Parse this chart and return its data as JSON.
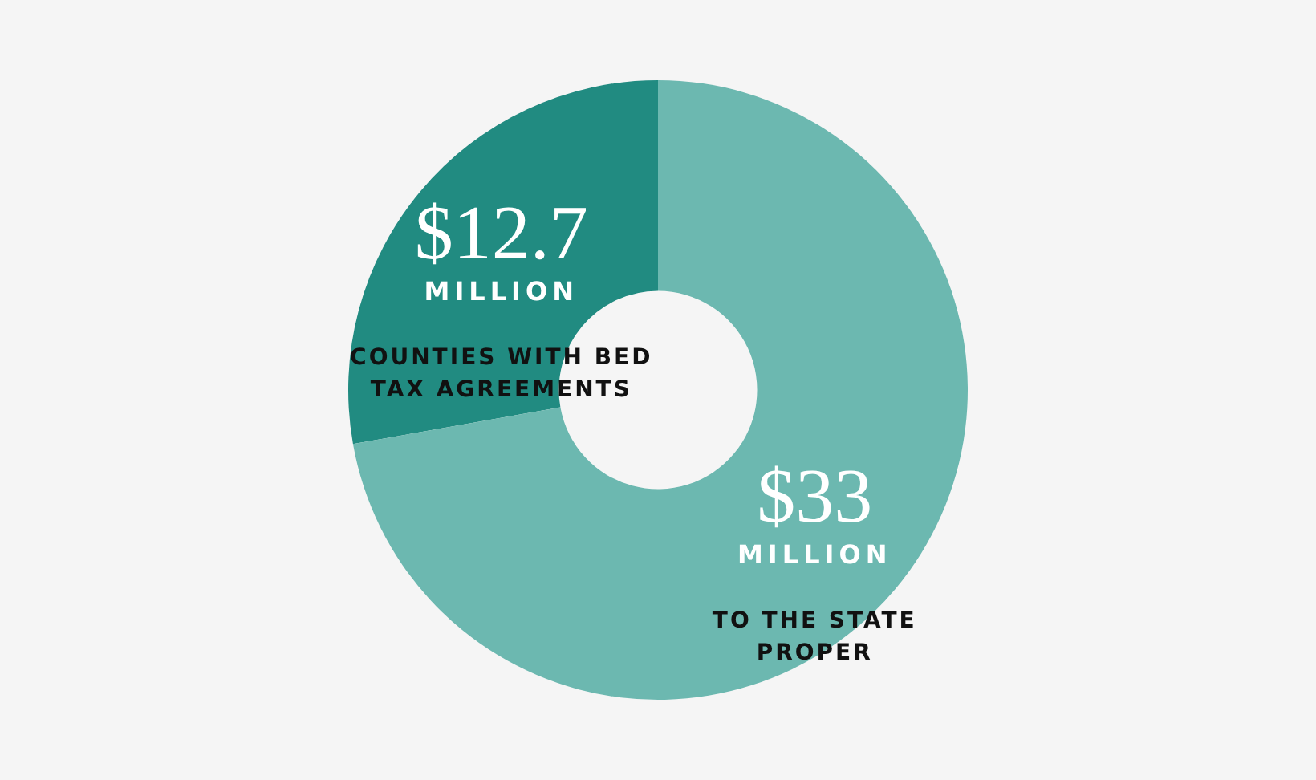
{
  "chart_data": {
    "type": "donut",
    "categories": [
      "COUNTIES WITH BED TAX AGREEMENTS",
      "TO THE STATE PROPER"
    ],
    "values": [
      12.7,
      33
    ],
    "colors": [
      "#218b81",
      "#6cb8b0"
    ],
    "value_labels": [
      "$12.7 MILLION",
      "$33 MILLION"
    ],
    "legend": false
  }
}
